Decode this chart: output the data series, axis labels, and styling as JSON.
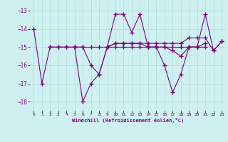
{
  "xlabel": "Windchill (Refroidissement éolien,°C)",
  "hours": [
    0,
    1,
    2,
    3,
    4,
    5,
    6,
    7,
    8,
    9,
    10,
    11,
    12,
    13,
    14,
    15,
    16,
    17,
    18,
    19,
    20,
    21,
    22,
    23
  ],
  "series": [
    [
      -14,
      -17,
      -15,
      -15,
      -15,
      -15,
      -18,
      -17,
      -16.5,
      -15,
      -13.2,
      -13.2,
      -14.2,
      -13.2,
      -15,
      -15,
      -16,
      -17.5,
      -16.5,
      -15,
      -15,
      -13.2,
      -15.2,
      -14.7
    ],
    [
      null,
      null,
      -15,
      -15,
      -15,
      -15,
      -15,
      -15,
      -15,
      -15,
      -15,
      -15,
      -15,
      -15,
      -15,
      -15,
      -15,
      -15,
      -15,
      -15,
      -15,
      -15,
      null,
      null
    ],
    [
      null,
      null,
      null,
      null,
      null,
      -15,
      -15,
      -16,
      -16.5,
      -15,
      -14.8,
      -14.8,
      -14.8,
      -14.8,
      -14.8,
      -14.8,
      -14.8,
      -14.8,
      -14.8,
      -14.5,
      -14.5,
      -14.5,
      -15.2,
      -14.7
    ],
    [
      null,
      null,
      null,
      null,
      null,
      null,
      null,
      null,
      null,
      -15,
      -14.8,
      -14.8,
      -14.8,
      -14.8,
      -15,
      -15,
      -15,
      -15.2,
      -15.5,
      -15,
      -15,
      -14.8,
      null,
      null
    ]
  ],
  "line_color": "#800080",
  "bg_color": "#cff0f0",
  "grid_color": "#aadddd",
  "ylim": [
    -18.5,
    -12.5
  ],
  "yticks": [
    -18,
    -17,
    -16,
    -15,
    -14,
    -13
  ],
  "xticks": [
    0,
    1,
    2,
    3,
    4,
    5,
    6,
    7,
    8,
    9,
    10,
    11,
    12,
    13,
    14,
    15,
    16,
    17,
    18,
    19,
    20,
    21,
    22,
    23
  ],
  "marker": "+",
  "markersize": 4,
  "linewidth": 0.8
}
